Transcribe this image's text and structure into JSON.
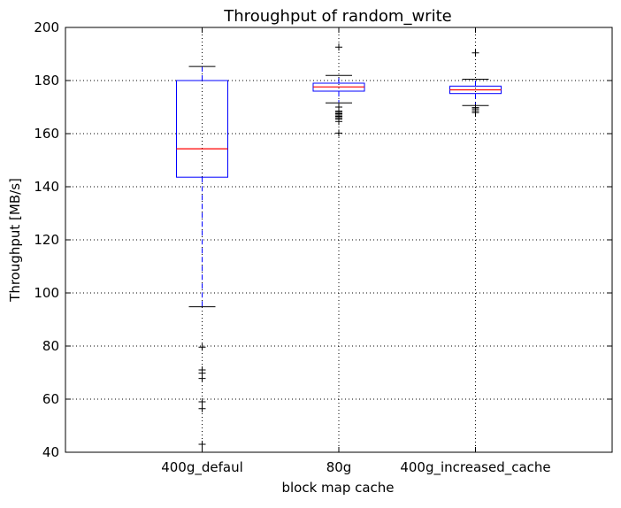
{
  "chart_data": {
    "type": "box",
    "title": "Throughput of random_write",
    "xlabel": "block map cache",
    "ylabel": "Throughput [MB/s]",
    "ylim": [
      40,
      200
    ],
    "yticks": [
      40,
      60,
      80,
      100,
      120,
      140,
      160,
      180,
      200
    ],
    "grid": true,
    "categories": [
      "400g_defaul",
      "80g",
      "400g_increased_cache"
    ],
    "boxes": [
      {
        "category": "400g_defaul",
        "whisker_low": 94.8,
        "q1": 143.6,
        "median": 154.3,
        "q3": 180.0,
        "whisker_high": 185.3,
        "outliers": [
          79.6,
          71.0,
          69.8,
          67.8,
          59.0,
          56.4,
          43.0
        ]
      },
      {
        "category": "80g",
        "whisker_low": 171.6,
        "q1": 176.0,
        "median": 177.6,
        "q3": 179.0,
        "whisker_high": 181.9,
        "outliers": [
          192.6,
          170.0,
          168.5,
          168.0,
          167.5,
          167.0,
          166.5,
          166.0,
          165.5,
          164.6,
          160.2
        ]
      },
      {
        "category": "400g_increased_cache",
        "whisker_low": 170.6,
        "q1": 175.1,
        "median": 176.5,
        "q3": 177.9,
        "whisker_high": 180.5,
        "outliers": [
          190.4,
          169.8,
          169.3,
          168.6,
          167.9
        ]
      }
    ]
  },
  "colors": {
    "box": "#0000ff",
    "median": "#ff0000",
    "whisker": "#0000ff",
    "cap": "#000000",
    "outlier": "#000000",
    "grid": "#000000"
  }
}
